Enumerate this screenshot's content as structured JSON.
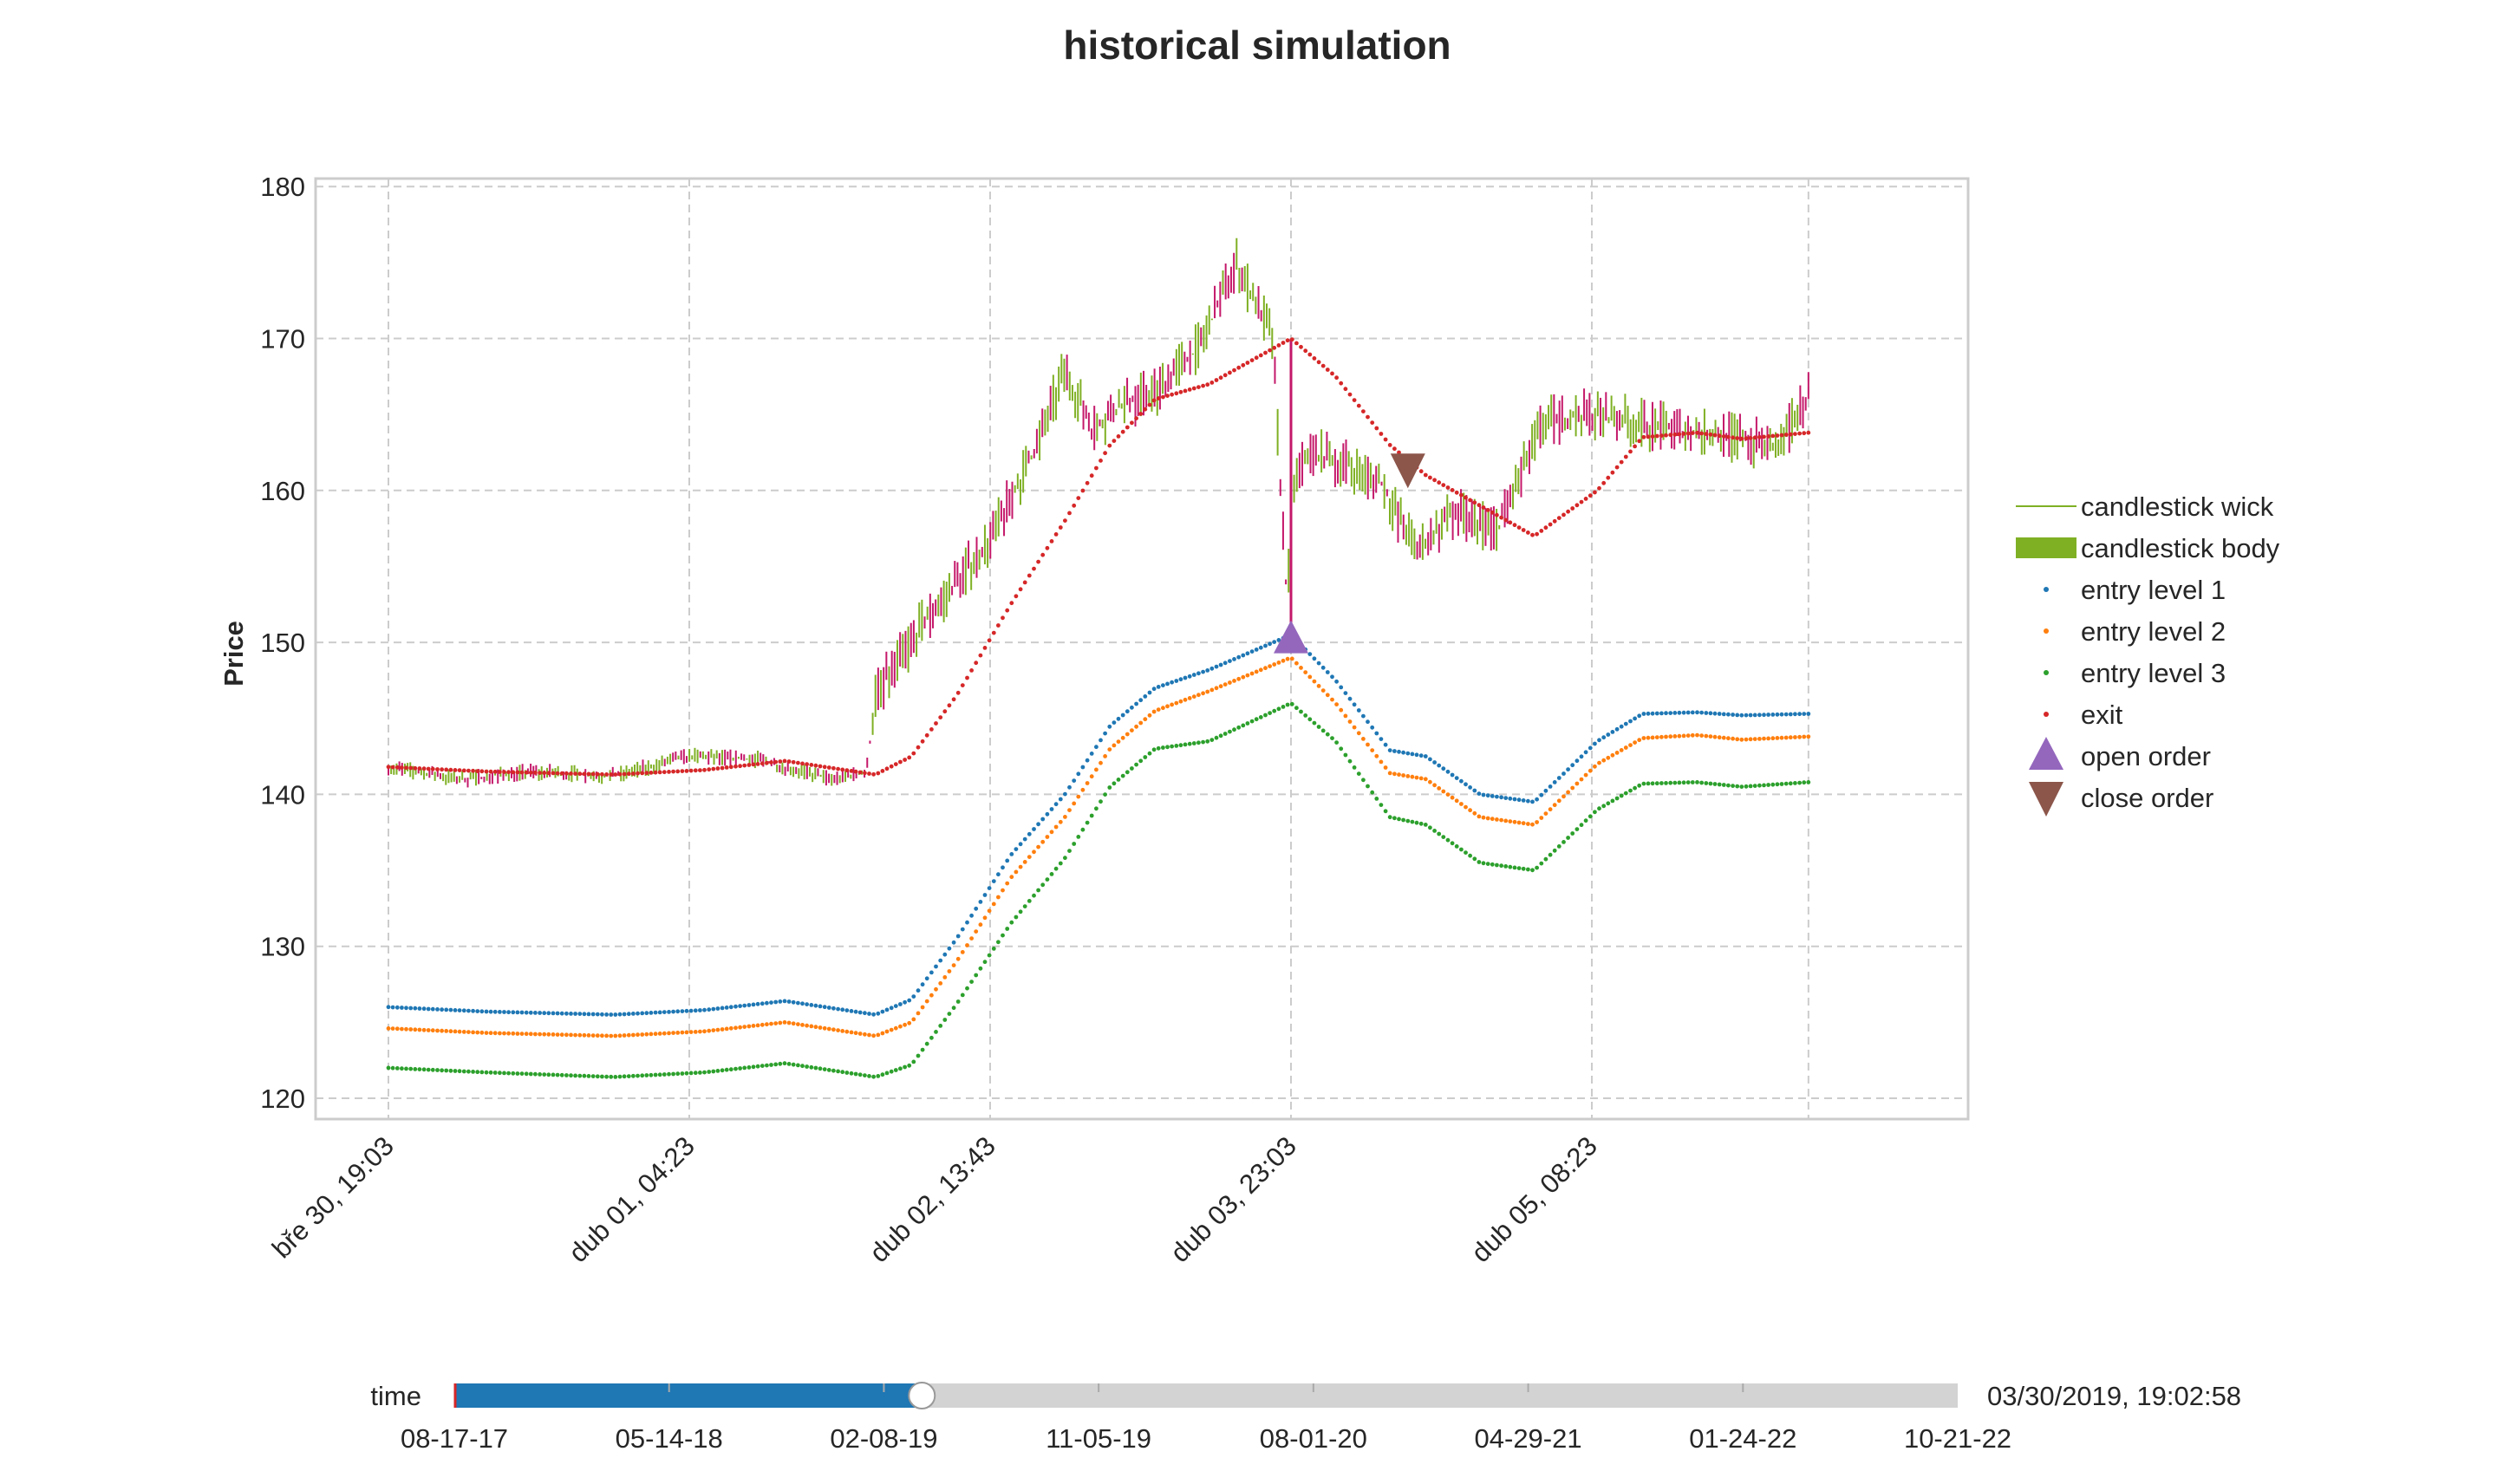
{
  "chart_data": {
    "type": "line",
    "title": "historical simulation",
    "ylabel": "Price",
    "xlabel": "",
    "ylim": [
      119,
      180.5
    ],
    "yticks": [
      120,
      130,
      140,
      150,
      160,
      170,
      180
    ],
    "x_range": [
      "2019-03-30 19:03",
      "2019-04-06 08:23"
    ],
    "x_ticks": [
      {
        "x": "2019-03-30 19:03",
        "label": "bře 30, 19:03"
      },
      {
        "x": "2019-04-01 04:23",
        "label": "dub 01, 04:23"
      },
      {
        "x": "2019-04-02 13:43",
        "label": "dub 02, 13:43"
      },
      {
        "x": "2019-04-03 23:03",
        "label": "dub 03, 23:03"
      },
      {
        "x": "2019-04-05 08:23",
        "label": "dub 05, 08:23"
      }
    ],
    "grid": true,
    "legend_position": "right",
    "colors": {
      "candle": "#7fb024",
      "candle_down": "#c4186a",
      "entry1": "#1f77b4",
      "entry2": "#ff7f0e",
      "entry3": "#2ca02c",
      "exit": "#d62728",
      "open_order": "#9467bd",
      "close_order": "#8c564b"
    },
    "series": [
      {
        "name": "candlestick wick",
        "kind": "wick",
        "x": [
          "2019-03-30 19:03",
          "2019-03-31 03:00",
          "2019-03-31 11:00",
          "2019-03-31 20:00",
          "2019-04-01 04:23",
          "2019-04-01 12:00",
          "2019-04-01 20:00",
          "2019-04-02 00:00",
          "2019-04-02 01:00",
          "2019-04-02 06:00",
          "2019-04-02 10:00",
          "2019-04-02 14:00",
          "2019-04-02 19:00",
          "2019-04-02 22:00",
          "2019-04-03 01:00",
          "2019-04-03 04:00",
          "2019-04-03 08:00",
          "2019-04-03 13:00",
          "2019-04-03 17:00",
          "2019-04-03 21:00",
          "2019-04-03 22:40",
          "2019-04-03 23:03",
          "2019-04-04 01:00",
          "2019-04-04 05:00",
          "2019-04-04 09:00",
          "2019-04-04 13:00",
          "2019-04-04 17:00",
          "2019-04-04 22:00",
          "2019-04-05 03:00",
          "2019-04-05 08:23",
          "2019-04-05 13:00",
          "2019-04-05 19:00",
          "2019-04-06 01:00",
          "2019-04-06 05:00",
          "2019-04-06 08:23"
        ],
        "values": [
          141.8,
          141.0,
          141.5,
          141.2,
          142.5,
          142.3,
          141.0,
          141.4,
          146.5,
          151.0,
          154.0,
          157.0,
          163.0,
          168.0,
          164.0,
          165.5,
          166.5,
          169.5,
          175.0,
          170.0,
          152.0,
          160.0,
          162.5,
          161.8,
          160.5,
          156.0,
          158.5,
          157.5,
          164.5,
          165.0,
          164.5,
          163.8,
          163.5,
          162.5,
          166.5
        ]
      },
      {
        "name": "candlestick body",
        "kind": "legend-only"
      },
      {
        "name": "entry level 1",
        "x": [
          "2019-03-30 19:03",
          "2019-03-31 06:00",
          "2019-03-31 20:00",
          "2019-04-01 06:00",
          "2019-04-01 15:00",
          "2019-04-02 01:00",
          "2019-04-02 05:00",
          "2019-04-02 10:00",
          "2019-04-02 16:00",
          "2019-04-02 22:00",
          "2019-04-03 03:00",
          "2019-04-03 08:00",
          "2019-04-03 14:00",
          "2019-04-03 23:03",
          "2019-04-04 04:00",
          "2019-04-04 10:00",
          "2019-04-04 14:00",
          "2019-04-04 20:00",
          "2019-04-05 02:00",
          "2019-04-05 09:00",
          "2019-04-05 14:00",
          "2019-04-05 20:00",
          "2019-04-06 01:00",
          "2019-04-06 08:23"
        ],
        "values": [
          126.0,
          125.7,
          125.5,
          125.8,
          126.4,
          125.5,
          126.5,
          130.5,
          136.0,
          140.0,
          144.5,
          147.0,
          148.2,
          150.5,
          147.5,
          142.9,
          142.5,
          140.0,
          139.5,
          143.5,
          145.3,
          145.4,
          145.2,
          145.3
        ]
      },
      {
        "name": "entry level 2",
        "x": [
          "2019-03-30 19:03",
          "2019-03-31 06:00",
          "2019-03-31 20:00",
          "2019-04-01 06:00",
          "2019-04-01 15:00",
          "2019-04-02 01:00",
          "2019-04-02 05:00",
          "2019-04-02 10:00",
          "2019-04-02 16:00",
          "2019-04-02 22:00",
          "2019-04-03 03:00",
          "2019-04-03 08:00",
          "2019-04-03 14:00",
          "2019-04-03 23:03",
          "2019-04-04 04:00",
          "2019-04-04 10:00",
          "2019-04-04 14:00",
          "2019-04-04 20:00",
          "2019-04-05 02:00",
          "2019-04-05 09:00",
          "2019-04-05 14:00",
          "2019-04-05 20:00",
          "2019-04-06 01:00",
          "2019-04-06 08:23"
        ],
        "values": [
          124.6,
          124.3,
          124.1,
          124.4,
          125.0,
          124.1,
          125.0,
          129.0,
          134.5,
          138.5,
          143.0,
          145.5,
          146.8,
          149.0,
          146.0,
          141.4,
          141.0,
          138.5,
          138.0,
          142.0,
          143.7,
          143.9,
          143.6,
          143.8
        ]
      },
      {
        "name": "entry level 3",
        "x": [
          "2019-03-30 19:03",
          "2019-03-31 06:00",
          "2019-03-31 20:00",
          "2019-04-01 06:00",
          "2019-04-01 15:00",
          "2019-04-02 01:00",
          "2019-04-02 05:00",
          "2019-04-02 10:00",
          "2019-04-02 16:00",
          "2019-04-02 22:00",
          "2019-04-03 03:00",
          "2019-04-03 08:00",
          "2019-04-03 14:00",
          "2019-04-03 23:03",
          "2019-04-04 04:00",
          "2019-04-04 10:00",
          "2019-04-04 14:00",
          "2019-04-04 20:00",
          "2019-04-05 02:00",
          "2019-04-05 09:00",
          "2019-04-05 14:00",
          "2019-04-05 20:00",
          "2019-04-06 01:00",
          "2019-04-06 08:23"
        ],
        "values": [
          122.0,
          121.7,
          121.4,
          121.7,
          122.3,
          121.4,
          122.2,
          126.2,
          131.5,
          135.8,
          140.5,
          143.0,
          143.5,
          146.0,
          143.5,
          138.5,
          138.0,
          135.5,
          135.0,
          139.0,
          140.7,
          140.8,
          140.5,
          140.8
        ]
      },
      {
        "name": "exit",
        "x": [
          "2019-03-30 19:03",
          "2019-03-31 06:00",
          "2019-03-31 20:00",
          "2019-04-01 06:00",
          "2019-04-01 15:00",
          "2019-04-02 01:00",
          "2019-04-02 05:00",
          "2019-04-02 10:00",
          "2019-04-02 16:00",
          "2019-04-02 22:00",
          "2019-04-03 03:00",
          "2019-04-03 08:00",
          "2019-04-03 14:00",
          "2019-04-03 23:03",
          "2019-04-04 04:00",
          "2019-04-04 10:00",
          "2019-04-04 14:00",
          "2019-04-04 20:00",
          "2019-04-05 02:00",
          "2019-04-05 09:00",
          "2019-04-05 14:00",
          "2019-04-05 20:00",
          "2019-04-06 01:00",
          "2019-04-06 08:23"
        ],
        "values": [
          141.8,
          141.5,
          141.3,
          141.6,
          142.2,
          141.3,
          142.5,
          146.5,
          152.5,
          158.0,
          163.0,
          166.0,
          167.0,
          170.0,
          167.5,
          163.0,
          161.0,
          159.0,
          157.0,
          160.0,
          163.5,
          163.8,
          163.4,
          163.8
        ]
      },
      {
        "name": "open order",
        "kind": "marker-up",
        "x": [
          "2019-04-03 23:03"
        ],
        "values": [
          150.2
        ]
      },
      {
        "name": "close order",
        "kind": "marker-down",
        "x": [
          "2019-04-04 12:00"
        ],
        "values": [
          161.4
        ]
      }
    ]
  },
  "slider": {
    "label": "time",
    "value_text": "03/30/2019, 19:02:58",
    "position_fraction": 0.311,
    "ticks": [
      "08-17-17",
      "05-14-18",
      "02-08-19",
      "11-05-19",
      "08-01-20",
      "04-29-21",
      "01-24-22",
      "10-21-22"
    ]
  }
}
